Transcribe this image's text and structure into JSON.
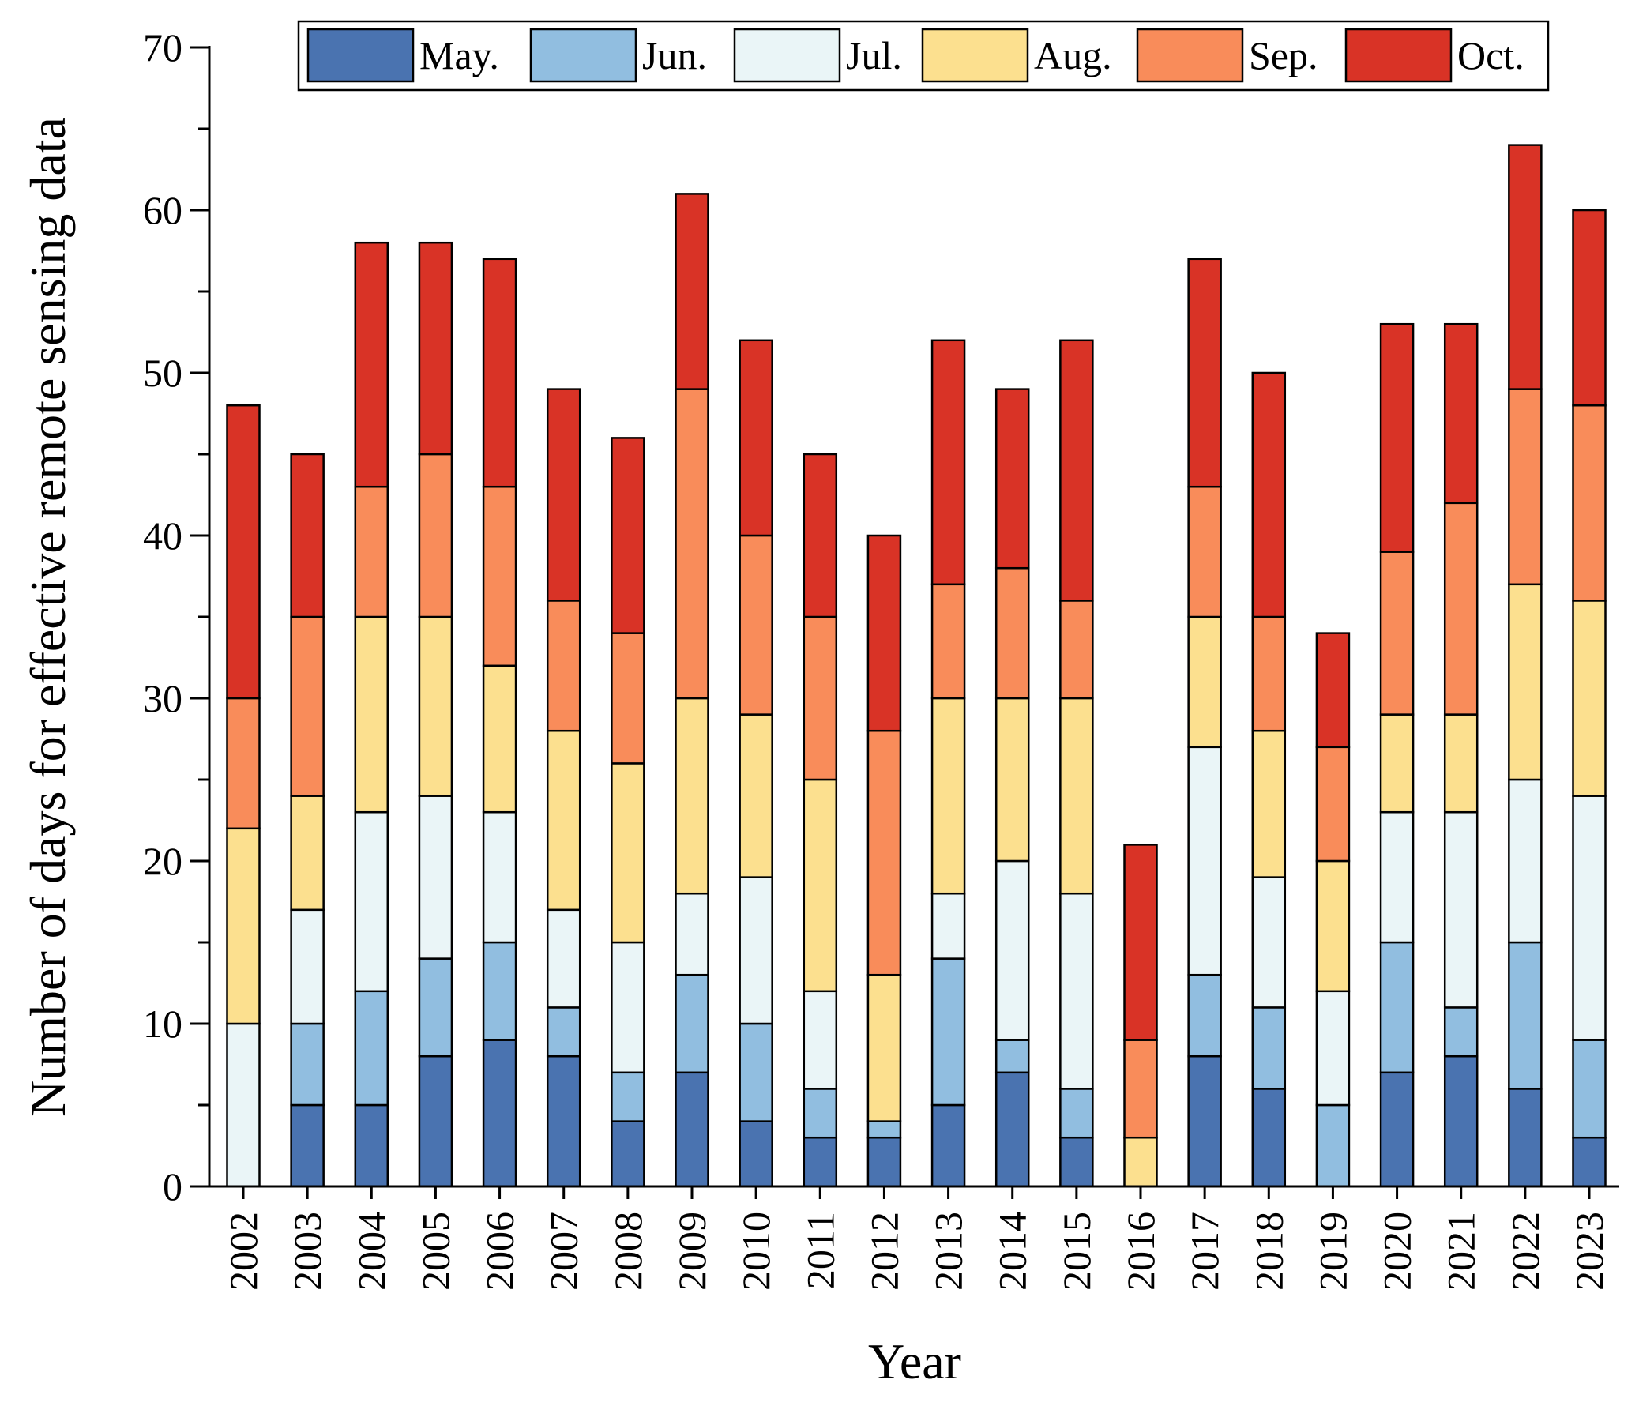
{
  "chart_data": {
    "type": "bar",
    "stacked": true,
    "title": "",
    "xlabel": "Year",
    "ylabel": "Number of days for effective remote sensing data",
    "ylim": [
      0,
      70
    ],
    "yticks": [
      0,
      10,
      20,
      30,
      40,
      50,
      60,
      70
    ],
    "legend_position": "top",
    "grid": false,
    "categories": [
      "2002",
      "2003",
      "2004",
      "2005",
      "2006",
      "2007",
      "2008",
      "2009",
      "2010",
      "2011",
      "2012",
      "2013",
      "2014",
      "2015",
      "2016",
      "2017",
      "2018",
      "2019",
      "2020",
      "2021",
      "2022",
      "2023"
    ],
    "series": [
      {
        "name": "May.",
        "color": "#4a73b0",
        "values": [
          0,
          5,
          5,
          8,
          9,
          8,
          4,
          7,
          4,
          3,
          3,
          5,
          7,
          3,
          0,
          8,
          6,
          0,
          7,
          8,
          6,
          3
        ]
      },
      {
        "name": "Jun.",
        "color": "#91bee0",
        "values": [
          0,
          5,
          7,
          6,
          6,
          3,
          3,
          6,
          6,
          3,
          1,
          9,
          2,
          3,
          0,
          5,
          5,
          5,
          8,
          3,
          9,
          6
        ]
      },
      {
        "name": "Jul.",
        "color": "#eaf5f7",
        "values": [
          10,
          7,
          11,
          10,
          8,
          6,
          8,
          5,
          9,
          6,
          0,
          4,
          11,
          12,
          0,
          14,
          8,
          7,
          8,
          12,
          10,
          15
        ]
      },
      {
        "name": "Aug.",
        "color": "#fce08f",
        "values": [
          12,
          7,
          12,
          11,
          9,
          11,
          11,
          12,
          10,
          13,
          9,
          12,
          10,
          12,
          3,
          8,
          9,
          8,
          6,
          6,
          12,
          12
        ]
      },
      {
        "name": "Sep.",
        "color": "#f98c5a",
        "values": [
          8,
          11,
          8,
          10,
          11,
          8,
          8,
          19,
          11,
          10,
          15,
          7,
          8,
          6,
          6,
          8,
          7,
          7,
          10,
          13,
          12,
          12
        ]
      },
      {
        "name": "Oct.",
        "color": "#d93326",
        "values": [
          18,
          10,
          15,
          13,
          14,
          13,
          12,
          12,
          12,
          10,
          12,
          15,
          11,
          16,
          12,
          14,
          15,
          7,
          14,
          11,
          15,
          12
        ]
      }
    ]
  }
}
